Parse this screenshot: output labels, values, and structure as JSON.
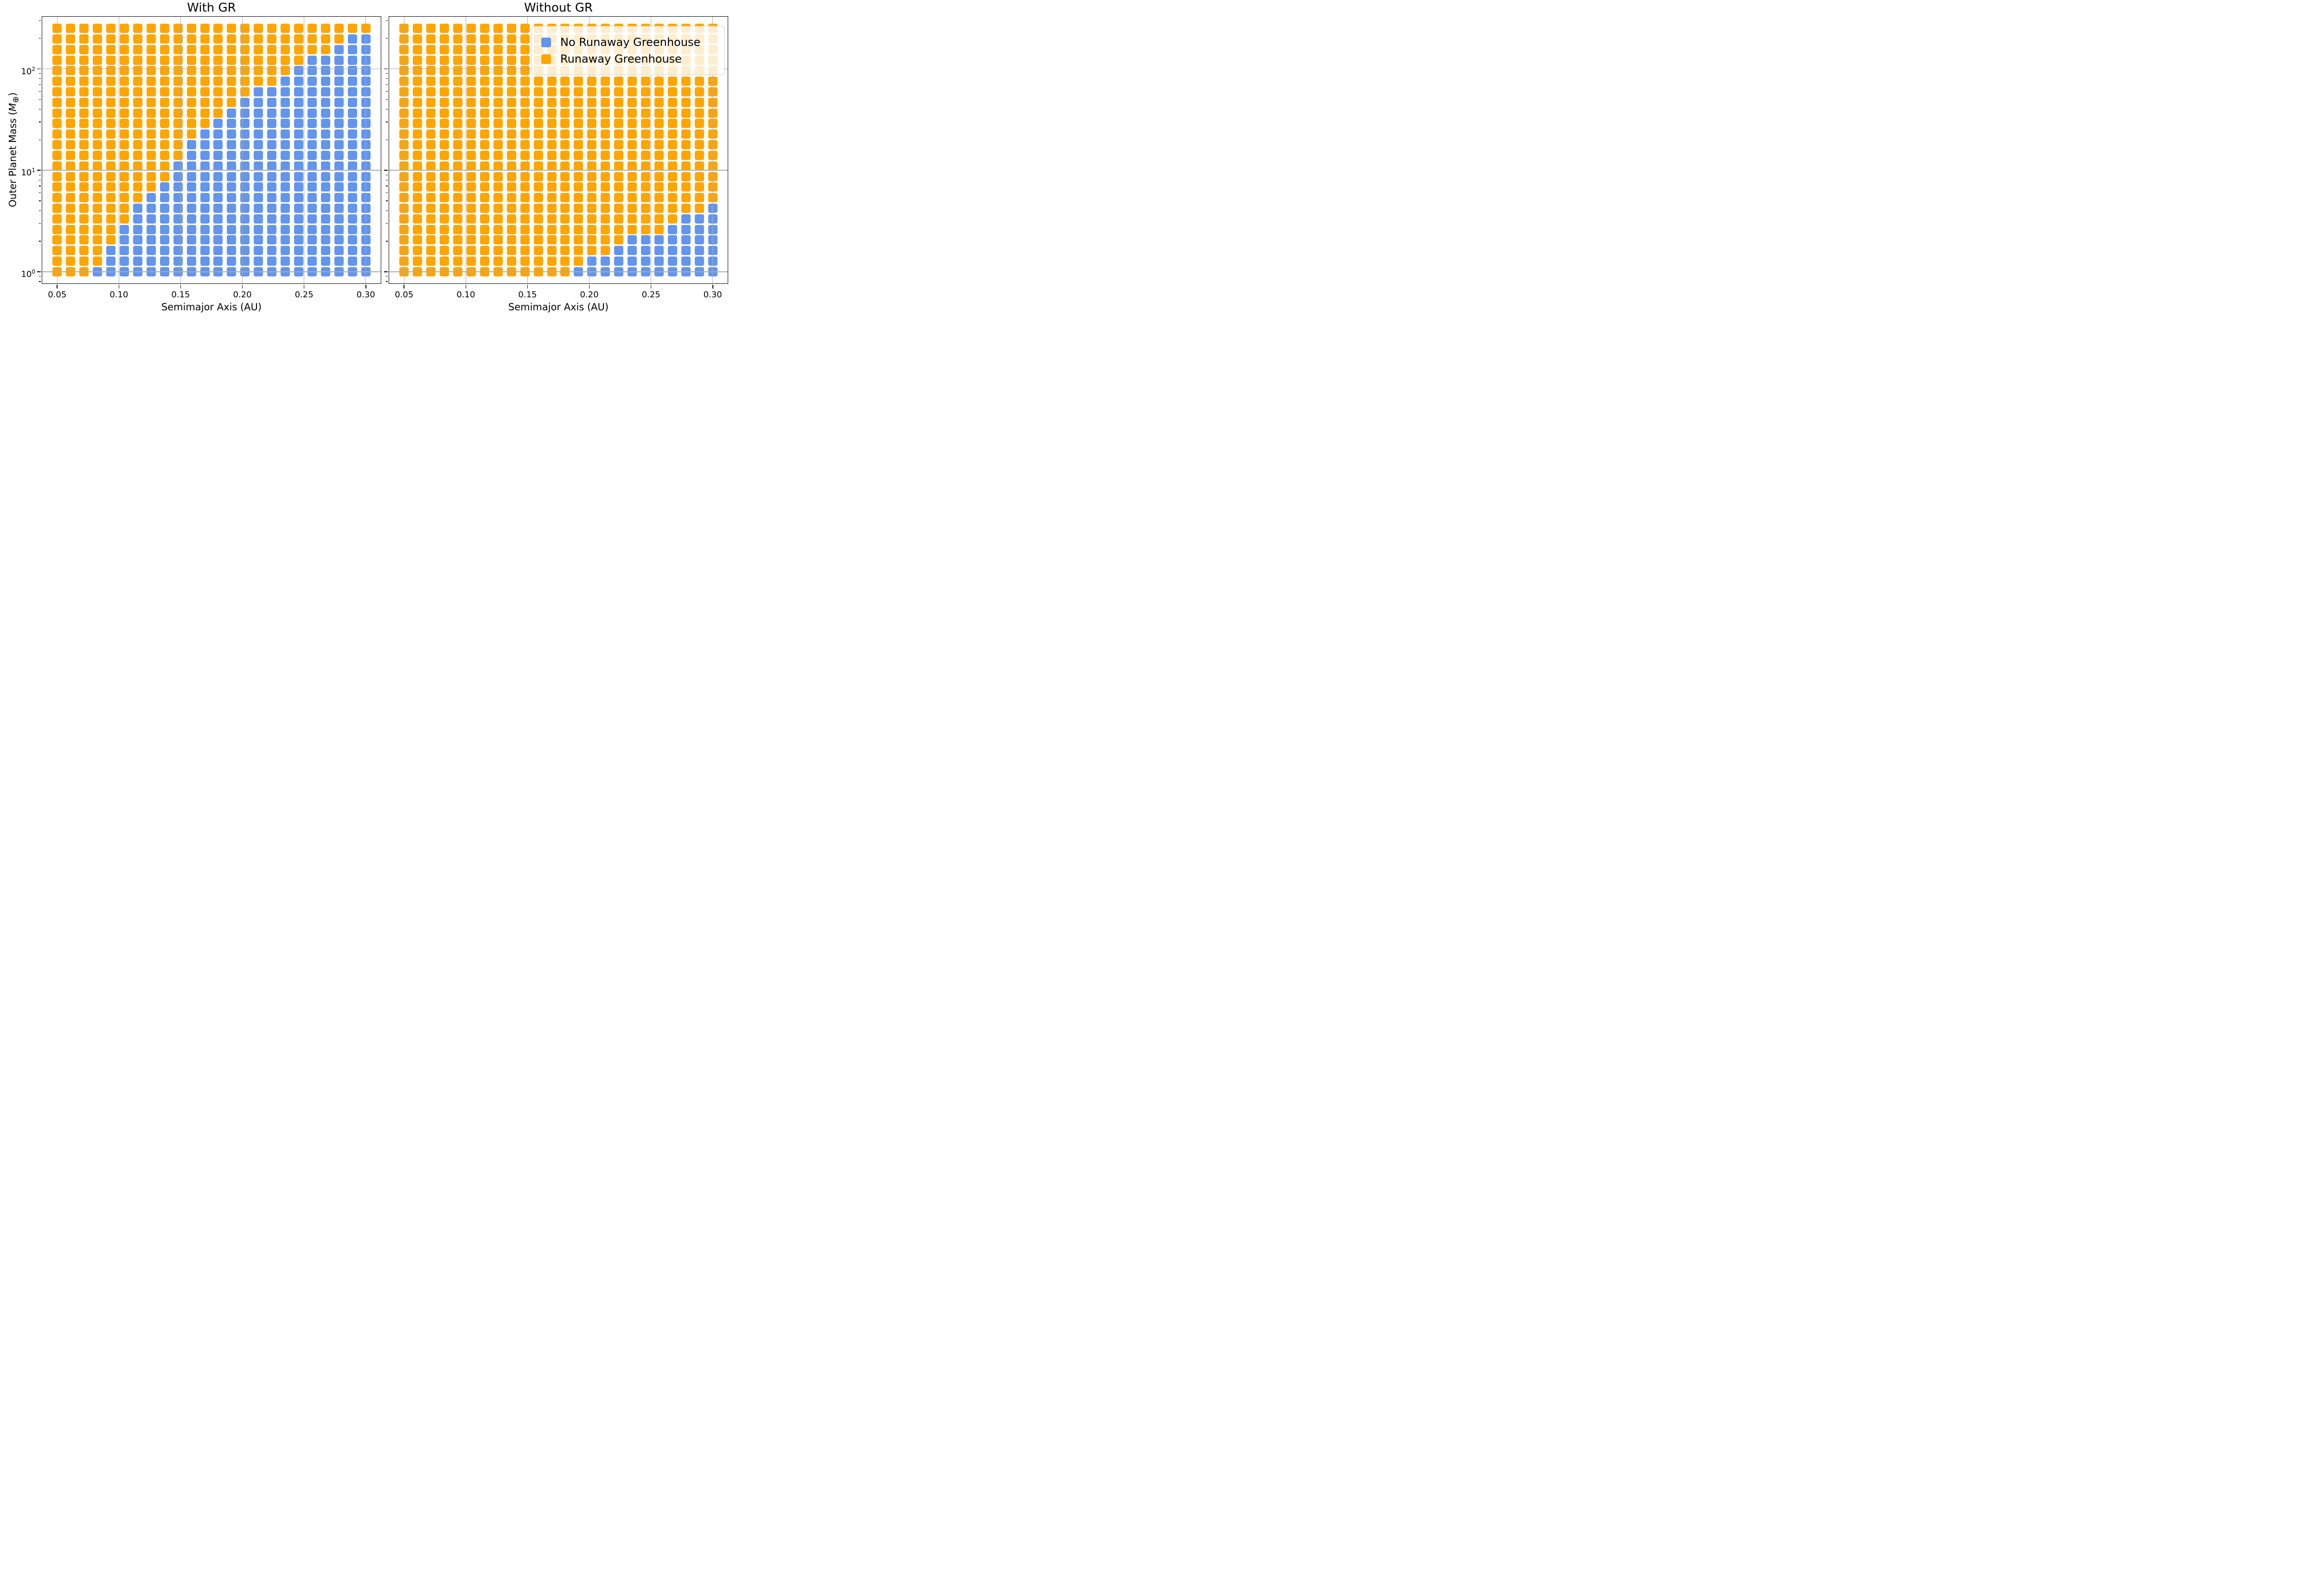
{
  "figure": {
    "titles": {
      "left": "With GR",
      "right": "Without GR"
    },
    "x_axis_label": "Semimajor Axis (AU)",
    "y_axis_label": {
      "pre": "Outer Planet Mass (",
      "sym": "M",
      "sub": "⊕",
      "post": ")"
    }
  },
  "chart_data": {
    "type": "scatter",
    "marker": "square",
    "title_left": "With GR",
    "title_right": "Without GR",
    "xlabel": "Semimajor Axis (AU)",
    "ylabel": "Outer Planet Mass (M⊕)",
    "x_scale": "linear",
    "y_scale": "log",
    "grid_on": true,
    "xlim": [
      0.0375,
      0.3125
    ],
    "ylim_log": [
      -0.12,
      2.52
    ],
    "x_ticks": [
      "0.05",
      "0.10",
      "0.15",
      "0.20",
      "0.25",
      "0.30"
    ],
    "x_tick_values": [
      0.05,
      0.1,
      0.15,
      0.2,
      0.25,
      0.3
    ],
    "y_ticks": [
      {
        "base": "10",
        "exp": "0",
        "value": 1
      },
      {
        "base": "10",
        "exp": "1",
        "value": 10
      },
      {
        "base": "10",
        "exp": "2",
        "value": 100
      }
    ],
    "x_values_au": [
      0.05,
      0.0609,
      0.0717,
      0.0826,
      0.0935,
      0.1043,
      0.1152,
      0.1261,
      0.137,
      0.1478,
      0.1587,
      0.1696,
      0.1804,
      0.1913,
      0.2022,
      0.213,
      0.2239,
      0.2348,
      0.2457,
      0.2565,
      0.2674,
      0.2783,
      0.2891,
      0.3
    ],
    "y_values_mearth_top_to_bottom": [
      251.19,
      197.63,
      155.42,
      122.22,
      96.11,
      75.58,
      59.44,
      46.74,
      36.76,
      28.91,
      22.73,
      17.88,
      14.06,
      11.06,
      8.69,
      6.84,
      5.38,
      4.23,
      3.32,
      2.61,
      2.06,
      1.62,
      1.27,
      1.0
    ],
    "marker_colors": {
      "O": "#FFA500",
      "B": "#6495ED"
    },
    "cell_meaning": {
      "O": "Runaway Greenhouse",
      "B": "No Runaway Greenhouse"
    },
    "legend": {
      "entries": [
        {
          "label": "No Runaway Greenhouse",
          "color": "#6495ED"
        },
        {
          "label": "Runaway Greenhouse",
          "color": "#FFA500"
        }
      ]
    },
    "panels": [
      {
        "title": "With GR",
        "grid_rows_top_to_bottom": [
          "OOOOOOOOOOOOOOOOOOOOOOOO",
          "OOOOOOOOOOOOOOOOOOOOOOBB",
          "OOOOOOOOOOOOOOOOOOOOOBBB",
          "OOOOOOOOOOOOOOOOOOOBBBBB",
          "OOOOOOOOOOOOOOOOOOBBBBBB",
          "OOOOOOOOOOOOOOOOOBBBBBBB",
          "OOOOOOOOOOOOOOOBBBBBBBBB",
          "OOOOOOOOOOOOOOBBBBBBBBBB",
          "OOOOOOOOOOOOOBBBBBBBBBBB",
          "OOOOOOOOOOOOBBBBBBBBBBBB",
          "OOOOOOOOOOOBBBBBBBBBBBBB",
          "OOOOOOOOOOBBBBBBBBBBBBBB",
          "OOOOOOOOOOBBBBBBBBBBBBBB",
          "OOOOOOOOOBBBBBBBBBBBBBBB",
          "OOOOOOOOOBBBBBBBBBBBBBBB",
          "OOOOOOOOBBBBBBBBBBBBBBBB",
          "OOOOOOOBBBBBBBBBBBBBBBBB",
          "OOOOOOBBBBBBBBBBBBBBBBBB",
          "OOOOOOBBBBBBBBBBBBBBBBBB",
          "OOOOOBBBBBBBBBBBBBBBBBBB",
          "OOOOOBBBBBBBBBBBBBBBBBBB",
          "OOOOBBBBBBBBBBBBBBBBBBBB",
          "OOOOBBBBBBBBBBBBBBBBBBBB",
          "OOOBBBBBBBBBBBBBBBBBBBBB"
        ]
      },
      {
        "title": "Without GR",
        "grid_rows_top_to_bottom": [
          "OOOOOOOOOOOOOOOOOOOOOOOO",
          "OOOOOOOOOOOOOOOOOOOOOOOO",
          "OOOOOOOOOOOOOOOOOOOOOOOO",
          "OOOOOOOOOOOOOOOOOOOOOOOO",
          "OOOOOOOOOOOOOOOOOOOOOOOO",
          "OOOOOOOOOOOOOOOOOOOOOOOO",
          "OOOOOOOOOOOOOOOOOOOOOOOO",
          "OOOOOOOOOOOOOOOOOOOOOOOO",
          "OOOOOOOOOOOOOOOOOOOOOOOO",
          "OOOOOOOOOOOOOOOOOOOOOOOO",
          "OOOOOOOOOOOOOOOOOOOOOOOO",
          "OOOOOOOOOOOOOOOOOOOOOOOO",
          "OOOOOOOOOOOOOOOOOOOOOOOO",
          "OOOOOOOOOOOOOOOOOOOOOOOO",
          "OOOOOOOOOOOOOOOOOOOOOOOO",
          "OOOOOOOOOOOOOOOOOOOOOOOO",
          "OOOOOOOOOOOOOOOOOOOOOOOO",
          "OOOOOOOOOOOOOOOOOOOOOOOB",
          "OOOOOOOOOOOOOOOOOOOOOBBB",
          "OOOOOOOOOOOOOOOOOOOOBBBB",
          "OOOOOOOOOOOOOOOOOBBBBBBB",
          "OOOOOOOOOOOOOOOOBBBBBBBB",
          "OOOOOOOOOOOOOOBBBBBBBBBB",
          "OOOOOOOOOOOOOBBBBBBBBBBB"
        ]
      }
    ]
  }
}
